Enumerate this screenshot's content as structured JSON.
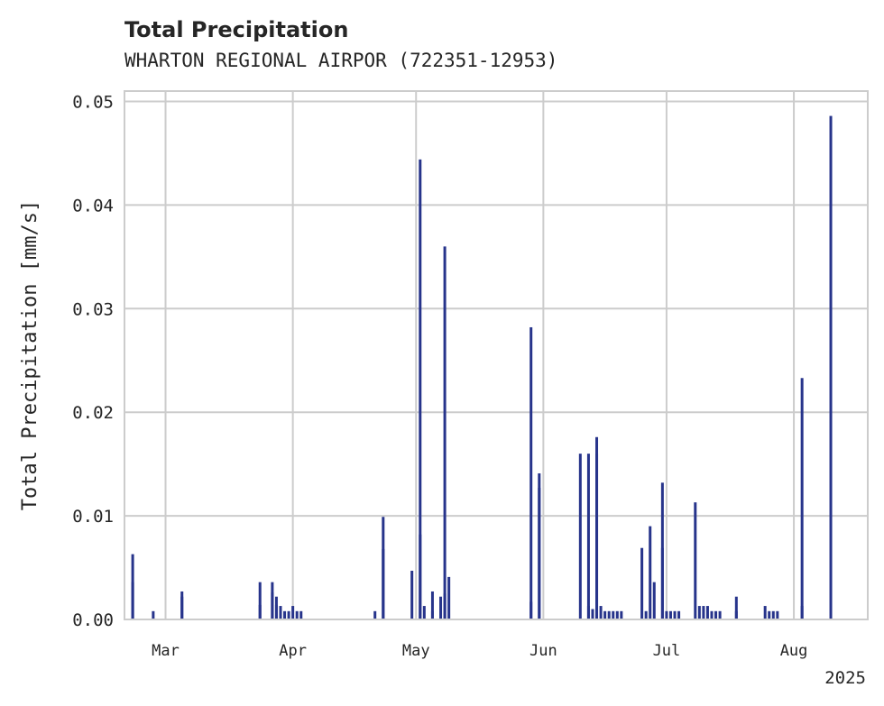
{
  "chart_data": {
    "type": "bar",
    "title": "Total Precipitation",
    "subtitle": "WHARTON REGIONAL AIRPOR (722351-12953)",
    "ylabel": "Total Precipitation [mm/s]",
    "xlabel": "",
    "year_label": "2025",
    "xlim": [
      "2025-02-19",
      "2025-08-19"
    ],
    "ylim": [
      0,
      0.051
    ],
    "grid": true,
    "bar_color": "#27348b",
    "yticks": [
      {
        "value": 0.0,
        "label": "0.00"
      },
      {
        "value": 0.01,
        "label": "0.01"
      },
      {
        "value": 0.02,
        "label": "0.02"
      },
      {
        "value": 0.03,
        "label": "0.03"
      },
      {
        "value": 0.04,
        "label": "0.04"
      },
      {
        "value": 0.05,
        "label": "0.05"
      }
    ],
    "xticks": [
      {
        "date": "2025-03-01",
        "label": "Mar"
      },
      {
        "date": "2025-04-01",
        "label": "Apr"
      },
      {
        "date": "2025-05-01",
        "label": "May"
      },
      {
        "date": "2025-06-01",
        "label": "Jun"
      },
      {
        "date": "2025-07-01",
        "label": "Jul"
      },
      {
        "date": "2025-08-01",
        "label": "Aug"
      }
    ],
    "series": [
      {
        "x": [
          "2025-02-21",
          "2025-02-21",
          "2025-02-26",
          "2025-03-05",
          "2025-03-05",
          "2025-03-24",
          "2025-03-24",
          "2025-03-27",
          "2025-03-27",
          "2025-03-28",
          "2025-03-28",
          "2025-03-29",
          "2025-03-30",
          "2025-03-31",
          "2025-04-01",
          "2025-04-02",
          "2025-04-03",
          "2025-04-21",
          "2025-04-23",
          "2025-04-23",
          "2025-04-30",
          "2025-05-02",
          "2025-05-02",
          "2025-05-03",
          "2025-05-05",
          "2025-05-05",
          "2025-05-07",
          "2025-05-08",
          "2025-05-08",
          "2025-05-09",
          "2025-05-29",
          "2025-05-29",
          "2025-05-31",
          "2025-05-31",
          "2025-06-10",
          "2025-06-12",
          "2025-06-12",
          "2025-06-13",
          "2025-06-14",
          "2025-06-14",
          "2025-06-15",
          "2025-06-16",
          "2025-06-17",
          "2025-06-18",
          "2025-06-19",
          "2025-06-20",
          "2025-06-25",
          "2025-06-26",
          "2025-06-27",
          "2025-06-28",
          "2025-06-30",
          "2025-06-30",
          "2025-07-01",
          "2025-07-02",
          "2025-07-03",
          "2025-07-04",
          "2025-07-08",
          "2025-07-09",
          "2025-07-10",
          "2025-07-11",
          "2025-07-12",
          "2025-07-13",
          "2025-07-14",
          "2025-07-18",
          "2025-07-18",
          "2025-07-25",
          "2025-07-26",
          "2025-07-27",
          "2025-07-28",
          "2025-08-03",
          "2025-08-03",
          "2025-08-10"
        ],
        "values": [
          0.0036,
          0.0063,
          0.0008,
          0.0022,
          0.0027,
          0.0036,
          0.0014,
          0.0036,
          0.0026,
          0.0022,
          0.0014,
          0.0013,
          0.0008,
          0.0008,
          0.0013,
          0.0008,
          0.0008,
          0.0008,
          0.0068,
          0.0099,
          0.0047,
          0.0444,
          0.0082,
          0.0013,
          0.0027,
          0.0008,
          0.0022,
          0.036,
          0.0025,
          0.0041,
          0.0282,
          0.0017,
          0.0141,
          0.0127,
          0.016,
          0.016,
          0.0013,
          0.001,
          0.0176,
          0.016,
          0.0013,
          0.0008,
          0.0008,
          0.0008,
          0.0008,
          0.0008,
          0.0069,
          0.0008,
          0.009,
          0.0036,
          0.0069,
          0.0132,
          0.0008,
          0.0008,
          0.0008,
          0.0008,
          0.0113,
          0.0013,
          0.0013,
          0.0013,
          0.0008,
          0.0008,
          0.0008,
          0.0022,
          0.0008,
          0.0013,
          0.0008,
          0.0008,
          0.0008,
          0.0233,
          0.0013,
          0.0486
        ]
      }
    ]
  }
}
